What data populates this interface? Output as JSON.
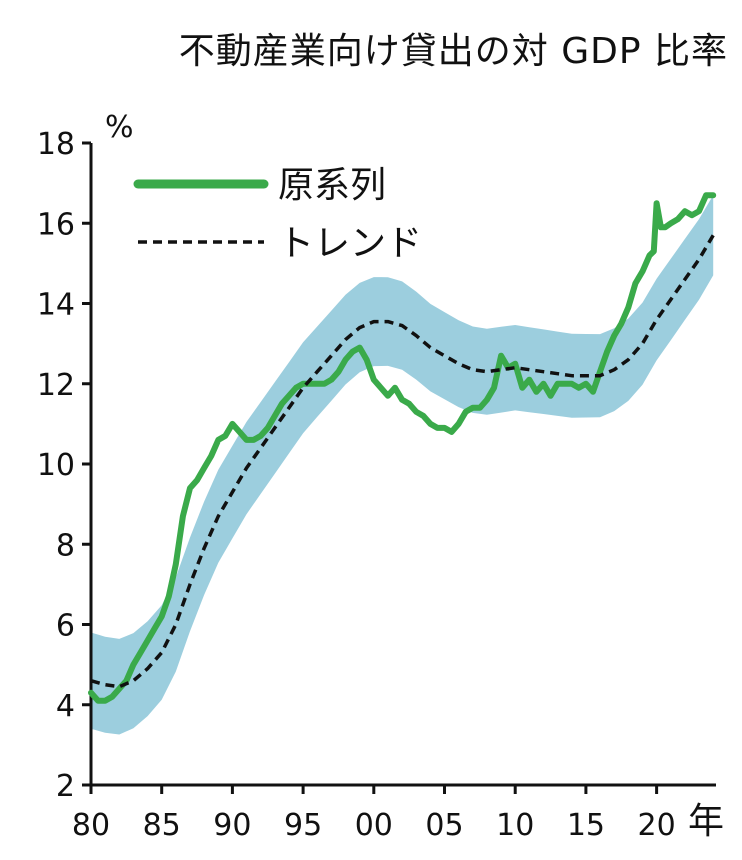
{
  "chart_data": {
    "type": "line",
    "title": "不動産業向け貸出の対 GDP 比率",
    "ylabel": "%",
    "xlabel": "年",
    "ylim": [
      2,
      18
    ],
    "xlim": [
      1980,
      2024.2
    ],
    "grid": false,
    "legend_position": "top-left",
    "yticks": [
      2,
      4,
      6,
      8,
      10,
      12,
      14,
      16,
      18
    ],
    "xticks": [
      {
        "value": 1980,
        "label": "80"
      },
      {
        "value": 1985,
        "label": "85"
      },
      {
        "value": 1990,
        "label": "90"
      },
      {
        "value": 1995,
        "label": "95"
      },
      {
        "value": 2000,
        "label": "00"
      },
      {
        "value": 2005,
        "label": "05"
      },
      {
        "value": 2010,
        "label": "10"
      },
      {
        "value": 2015,
        "label": "15"
      },
      {
        "value": 2020,
        "label": "20"
      }
    ],
    "series": [
      {
        "name": "原系列",
        "style": "solid",
        "color": "#3aaa4a",
        "points": [
          [
            1980.0,
            4.3
          ],
          [
            1980.5,
            4.1
          ],
          [
            1981.0,
            4.1
          ],
          [
            1981.5,
            4.2
          ],
          [
            1982.0,
            4.4
          ],
          [
            1982.5,
            4.6
          ],
          [
            1983.0,
            5.0
          ],
          [
            1983.5,
            5.3
          ],
          [
            1984.0,
            5.6
          ],
          [
            1984.5,
            5.9
          ],
          [
            1985.0,
            6.2
          ],
          [
            1985.5,
            6.7
          ],
          [
            1986.0,
            7.5
          ],
          [
            1986.5,
            8.7
          ],
          [
            1987.0,
            9.4
          ],
          [
            1987.5,
            9.6
          ],
          [
            1988.0,
            9.9
          ],
          [
            1988.5,
            10.2
          ],
          [
            1989.0,
            10.6
          ],
          [
            1989.5,
            10.7
          ],
          [
            1990.0,
            11.0
          ],
          [
            1990.5,
            10.8
          ],
          [
            1991.0,
            10.6
          ],
          [
            1991.5,
            10.6
          ],
          [
            1992.0,
            10.7
          ],
          [
            1992.5,
            10.9
          ],
          [
            1993.0,
            11.2
          ],
          [
            1993.5,
            11.5
          ],
          [
            1994.0,
            11.7
          ],
          [
            1994.5,
            11.9
          ],
          [
            1995.0,
            12.0
          ],
          [
            1995.5,
            12.0
          ],
          [
            1996.0,
            12.0
          ],
          [
            1996.5,
            12.0
          ],
          [
            1997.0,
            12.1
          ],
          [
            1997.5,
            12.3
          ],
          [
            1998.0,
            12.6
          ],
          [
            1998.5,
            12.8
          ],
          [
            1999.0,
            12.9
          ],
          [
            1999.5,
            12.6
          ],
          [
            2000.0,
            12.1
          ],
          [
            2000.5,
            11.9
          ],
          [
            2001.0,
            11.7
          ],
          [
            2001.5,
            11.9
          ],
          [
            2002.0,
            11.6
          ],
          [
            2002.5,
            11.5
          ],
          [
            2003.0,
            11.3
          ],
          [
            2003.5,
            11.2
          ],
          [
            2004.0,
            11.0
          ],
          [
            2004.5,
            10.9
          ],
          [
            2005.0,
            10.9
          ],
          [
            2005.5,
            10.8
          ],
          [
            2006.0,
            11.0
          ],
          [
            2006.5,
            11.3
          ],
          [
            2007.0,
            11.4
          ],
          [
            2007.5,
            11.4
          ],
          [
            2008.0,
            11.6
          ],
          [
            2008.5,
            11.9
          ],
          [
            2009.0,
            12.7
          ],
          [
            2009.5,
            12.4
          ],
          [
            2010.0,
            12.5
          ],
          [
            2010.5,
            11.9
          ],
          [
            2011.0,
            12.1
          ],
          [
            2011.5,
            11.8
          ],
          [
            2012.0,
            12.0
          ],
          [
            2012.5,
            11.7
          ],
          [
            2013.0,
            12.0
          ],
          [
            2013.5,
            12.0
          ],
          [
            2014.0,
            12.0
          ],
          [
            2014.5,
            11.9
          ],
          [
            2015.0,
            12.0
          ],
          [
            2015.5,
            11.8
          ],
          [
            2016.0,
            12.3
          ],
          [
            2016.5,
            12.8
          ],
          [
            2017.0,
            13.2
          ],
          [
            2017.5,
            13.5
          ],
          [
            2018.0,
            13.9
          ],
          [
            2018.5,
            14.5
          ],
          [
            2019.0,
            14.8
          ],
          [
            2019.5,
            15.2
          ],
          [
            2019.8,
            15.3
          ],
          [
            2020.0,
            16.5
          ],
          [
            2020.3,
            15.9
          ],
          [
            2020.6,
            15.9
          ],
          [
            2021.0,
            16.0
          ],
          [
            2021.5,
            16.1
          ],
          [
            2022.0,
            16.3
          ],
          [
            2022.5,
            16.2
          ],
          [
            2023.0,
            16.3
          ],
          [
            2023.5,
            16.7
          ],
          [
            2024.0,
            16.7
          ]
        ]
      },
      {
        "name": "トレンド",
        "style": "dashed",
        "color": "#111111",
        "band_color": "#9ccede",
        "band_halfwidth_start": 1.2,
        "band_halfwidth_end": 1.0,
        "points": [
          [
            1980.0,
            4.6
          ],
          [
            1981.0,
            4.5
          ],
          [
            1982.0,
            4.45
          ],
          [
            1983.0,
            4.6
          ],
          [
            1984.0,
            4.9
          ],
          [
            1985.0,
            5.3
          ],
          [
            1986.0,
            6.0
          ],
          [
            1987.0,
            7.0
          ],
          [
            1988.0,
            7.9
          ],
          [
            1989.0,
            8.7
          ],
          [
            1990.0,
            9.3
          ],
          [
            1991.0,
            9.9
          ],
          [
            1992.0,
            10.4
          ],
          [
            1993.0,
            10.9
          ],
          [
            1994.0,
            11.4
          ],
          [
            1995.0,
            11.9
          ],
          [
            1996.0,
            12.3
          ],
          [
            1997.0,
            12.7
          ],
          [
            1998.0,
            13.1
          ],
          [
            1999.0,
            13.4
          ],
          [
            2000.0,
            13.55
          ],
          [
            2001.0,
            13.55
          ],
          [
            2002.0,
            13.45
          ],
          [
            2003.0,
            13.2
          ],
          [
            2004.0,
            12.9
          ],
          [
            2005.0,
            12.7
          ],
          [
            2006.0,
            12.5
          ],
          [
            2007.0,
            12.35
          ],
          [
            2008.0,
            12.3
          ],
          [
            2009.0,
            12.35
          ],
          [
            2010.0,
            12.4
          ],
          [
            2011.0,
            12.35
          ],
          [
            2012.0,
            12.3
          ],
          [
            2013.0,
            12.25
          ],
          [
            2014.0,
            12.2
          ],
          [
            2015.0,
            12.2
          ],
          [
            2016.0,
            12.2
          ],
          [
            2017.0,
            12.35
          ],
          [
            2018.0,
            12.6
          ],
          [
            2019.0,
            13.0
          ],
          [
            2020.0,
            13.6
          ],
          [
            2021.0,
            14.1
          ],
          [
            2022.0,
            14.6
          ],
          [
            2023.0,
            15.1
          ],
          [
            2024.0,
            15.7
          ]
        ]
      }
    ]
  }
}
